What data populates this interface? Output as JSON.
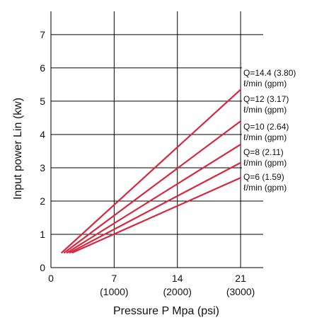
{
  "chart_data": {
    "type": "line",
    "xlabel": "Pressure P Mpa (psi)",
    "ylabel": "Input power Lin (kw)",
    "xlim": [
      0,
      23.5
    ],
    "ylim": [
      0,
      7.7
    ],
    "x_ticks": [
      {
        "value": 0,
        "label": "0",
        "sub": ""
      },
      {
        "value": 7,
        "label": "7",
        "sub": "(1000)"
      },
      {
        "value": 14,
        "label": "14",
        "sub": "(2000)"
      },
      {
        "value": 21,
        "label": "21",
        "sub": "(3000)"
      }
    ],
    "y_ticks": [
      {
        "value": 0,
        "label": "0"
      },
      {
        "value": 1,
        "label": "1"
      },
      {
        "value": 2,
        "label": "2"
      },
      {
        "value": 3,
        "label": "3"
      },
      {
        "value": 4,
        "label": "4"
      },
      {
        "value": 5,
        "label": "5"
      },
      {
        "value": 6,
        "label": "6"
      },
      {
        "value": 7,
        "label": "7"
      }
    ],
    "grid": true,
    "line_color": "#d7263d",
    "series": [
      {
        "name": "Q=14.4 (3.80)",
        "unit_line": "ℓ/min (gpm)",
        "x": [
          1.2,
          21
        ],
        "y": [
          0.45,
          5.35
        ]
      },
      {
        "name": "Q=12 (3.17)",
        "unit_line": "ℓ/min (gpm)",
        "x": [
          1.5,
          21
        ],
        "y": [
          0.45,
          4.4
        ]
      },
      {
        "name": "Q=10 (2.64)",
        "unit_line": "ℓ/min (gpm)",
        "x": [
          1.8,
          21
        ],
        "y": [
          0.45,
          3.7
        ]
      },
      {
        "name": "Q=8 (2.11)",
        "unit_line": "ℓ/min (gpm)",
        "x": [
          2.1,
          21
        ],
        "y": [
          0.45,
          3.15
        ]
      },
      {
        "name": "Q=6 (1.59)",
        "unit_line": "ℓ/min (gpm)",
        "x": [
          2.4,
          21
        ],
        "y": [
          0.45,
          2.7
        ]
      }
    ]
  }
}
